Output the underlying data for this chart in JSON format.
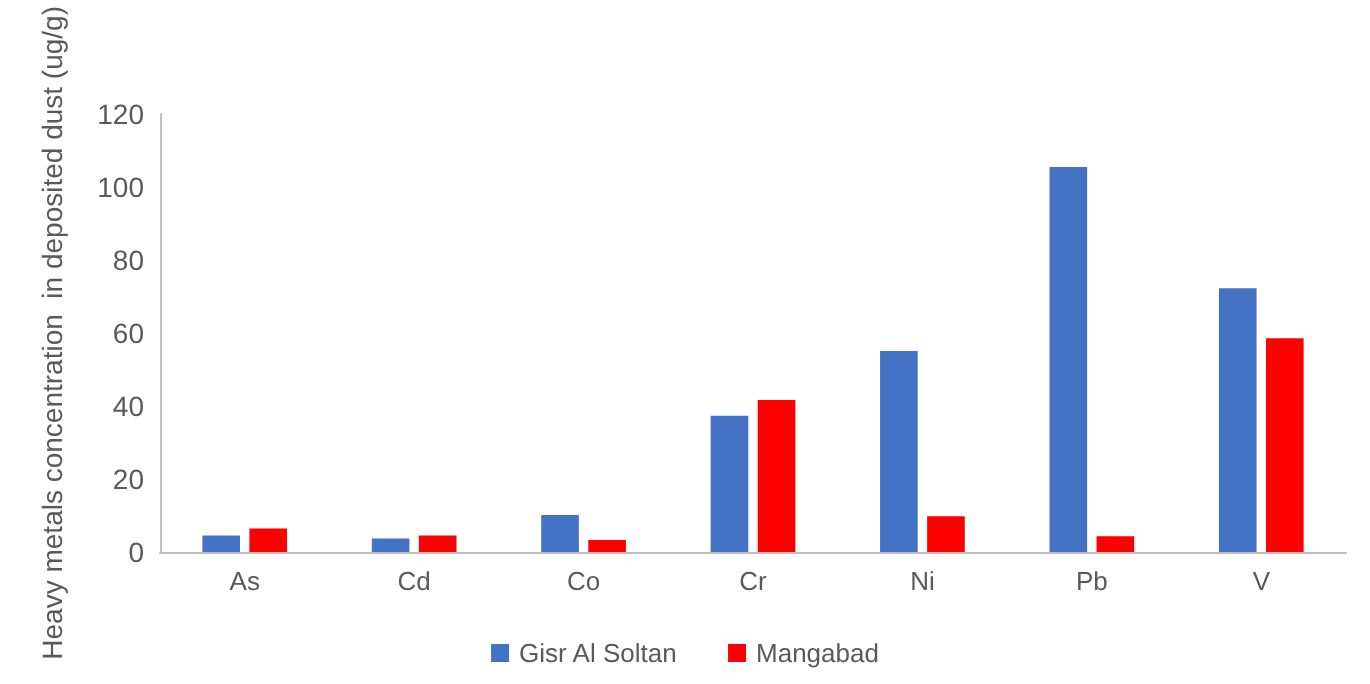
{
  "chart_data": {
    "type": "bar",
    "ylabel": "Heavy metals concentration  in deposited dust (ug/g)",
    "categories": [
      "As",
      "Cd",
      "Co",
      "Cr",
      "Ni",
      "Pb",
      "V"
    ],
    "series": [
      {
        "name": "Gisr Al Soltan",
        "color": "#4472c4",
        "values": [
          4.5,
          3.7,
          10.1,
          37.3,
          55,
          105.4,
          72.2
        ]
      },
      {
        "name": "Mangabad",
        "color": "#ff0000",
        "values": [
          6.4,
          4.5,
          3.3,
          41.6,
          9.8,
          4.3,
          58.5
        ]
      }
    ],
    "ylim": [
      0,
      120
    ],
    "yticks": [
      0,
      20,
      40,
      60,
      80,
      100,
      120
    ],
    "grid": false,
    "legend": "bottom"
  }
}
